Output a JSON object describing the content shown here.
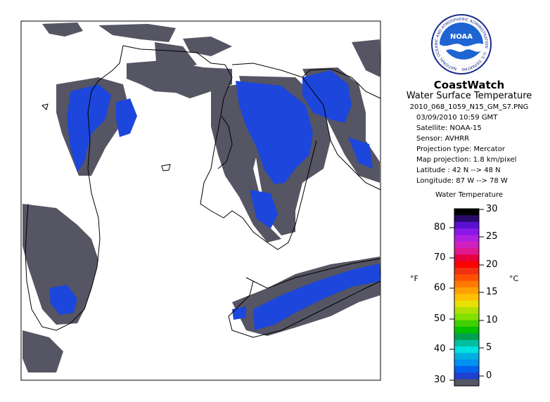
{
  "header": {
    "title": "CoastWatch",
    "subtitle": "Water Surface Temperature",
    "filename": "2010_068_1059_N15_GM_S7.PNG",
    "datetime": "03/09/2010   10:59 GMT",
    "satellite": "Satellite: NOAA-15",
    "sensor": "Sensor: AVHRR",
    "projection_type": "Projection type:  Mercator",
    "map_projection": "Map projection: 1.8 km/pixel",
    "latitude": "Latitude : 42 N --> 48 N",
    "longitude": "Longitude: 87 W --> 78 W"
  },
  "logo": {
    "text": "NOAA",
    "ring_text": "NATIONAL OCEANIC AND ATMOSPHERIC ADMINISTRATION · U.S. DEPARTMENT OF COMMERCE"
  },
  "legend": {
    "title": "Water Temperature",
    "unit_f": "°F",
    "unit_c": "°C",
    "f_ticks": [
      "80",
      "70",
      "60",
      "50",
      "40",
      "30"
    ],
    "c_ticks": [
      "30",
      "25",
      "20",
      "15",
      "10",
      "5",
      "0"
    ],
    "colors_top_to_bottom": [
      "#000000",
      "#2a0a6a",
      "#5a10d0",
      "#8a18e8",
      "#b020e0",
      "#d020c0",
      "#e01890",
      "#e80040",
      "#ff0000",
      "#f03010",
      "#ff5000",
      "#ff7a00",
      "#ffa000",
      "#ffc000",
      "#e8e000",
      "#b0e000",
      "#80e000",
      "#40d000",
      "#00c000",
      "#00a050",
      "#00c0a0",
      "#00e0e0",
      "#00b0e0",
      "#0090f0",
      "#0060f0",
      "#2040d0",
      "#555563"
    ]
  },
  "colors": {
    "land": "#ffffff",
    "cloud": "#555563",
    "ice_water": "#1c46dc",
    "coast": "#000000"
  }
}
